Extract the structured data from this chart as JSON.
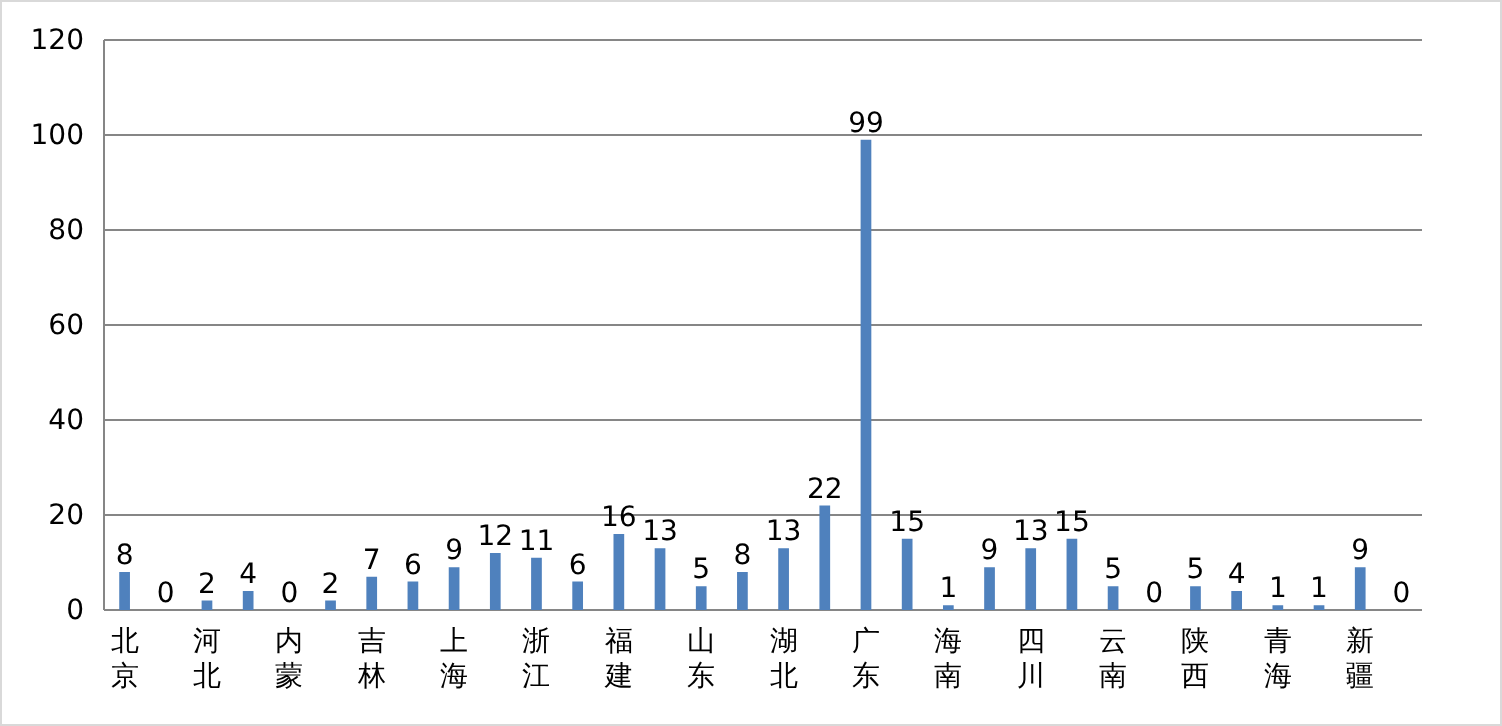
{
  "chart_data": {
    "type": "bar",
    "categories": [
      "北京",
      null,
      "河北",
      null,
      "内蒙",
      null,
      "吉林",
      null,
      "上海",
      null,
      "浙江",
      null,
      "福建",
      null,
      "山东",
      null,
      "湖北",
      null,
      "广东",
      null,
      "海南",
      null,
      "四川",
      null,
      "云南",
      null,
      "陕西",
      null,
      "青海",
      null,
      "新疆",
      null
    ],
    "values": [
      8,
      0,
      2,
      4,
      0,
      2,
      7,
      6,
      9,
      12,
      11,
      6,
      16,
      13,
      5,
      8,
      13,
      22,
      99,
      15,
      1,
      9,
      13,
      15,
      5,
      0,
      5,
      4,
      1,
      1,
      9,
      0
    ],
    "color": "#4f81bd",
    "ylim": [
      0,
      120
    ],
    "yticks": [
      0,
      20,
      40,
      60,
      80,
      100,
      120
    ],
    "grid": "y",
    "data_labels": true
  }
}
